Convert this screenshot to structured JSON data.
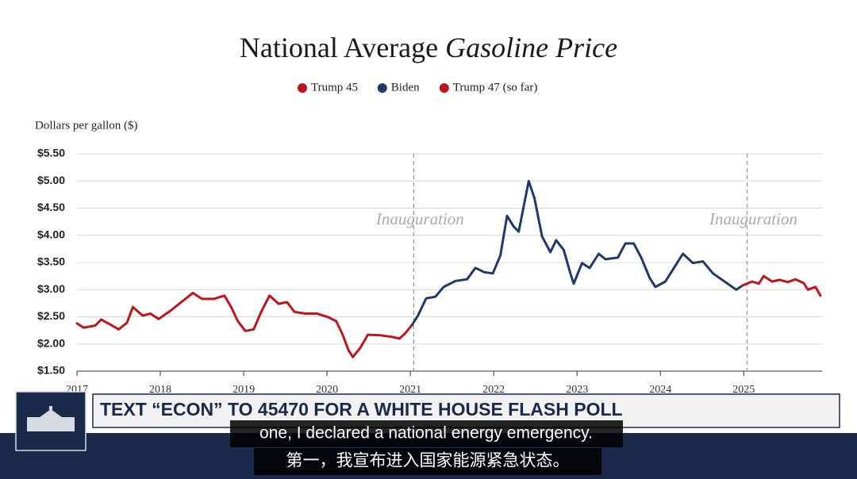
{
  "chart_data": {
    "type": "line",
    "title_parts": [
      "National Average",
      "Gasoline Price"
    ],
    "y_axis_label": "Dollars per gallon ($)",
    "xlim": [
      2017,
      2025.94
    ],
    "xticks": [
      2017,
      2018,
      2019,
      2020,
      2021,
      2022,
      2023,
      2024,
      2025
    ],
    "ylim": [
      1.5,
      5.5
    ],
    "yticks": [
      {
        "value": 1.5,
        "label": "$1.50"
      },
      {
        "value": 2,
        "label": "$2.00"
      },
      {
        "value": 2.5,
        "label": "$2.50"
      },
      {
        "value": 3,
        "label": "$3.00"
      },
      {
        "value": 3.5,
        "label": "$3.50"
      },
      {
        "value": 4,
        "label": "$4.00"
      },
      {
        "value": 4.5,
        "label": "$4.50"
      },
      {
        "value": 5,
        "label": "$5.00"
      },
      {
        "value": 5.5,
        "label": "$5.50"
      }
    ],
    "grid": true,
    "legend": "top",
    "annotations": [
      {
        "text": "Inauguration",
        "x": 2021.04
      },
      {
        "text": "Inauguration",
        "x": 2025.04
      }
    ],
    "series": [
      {
        "name": "Trump 45",
        "color": "#c0141d",
        "x": [
          2017.0,
          2017.08,
          2017.22,
          2017.29,
          2017.41,
          2017.5,
          2017.6,
          2017.67,
          2017.79,
          2017.88,
          2017.98,
          2018.12,
          2018.26,
          2018.39,
          2018.5,
          2018.64,
          2018.77,
          2018.85,
          2018.93,
          2019.02,
          2019.12,
          2019.21,
          2019.31,
          2019.42,
          2019.52,
          2019.61,
          2019.74,
          2019.88,
          2020.02,
          2020.11,
          2020.18,
          2020.26,
          2020.31,
          2020.4,
          2020.49,
          2020.64,
          2020.78,
          2020.87,
          2020.94,
          2021.02
        ],
        "values": [
          2.38,
          2.3,
          2.34,
          2.45,
          2.35,
          2.27,
          2.39,
          2.68,
          2.52,
          2.56,
          2.46,
          2.61,
          2.78,
          2.94,
          2.83,
          2.83,
          2.89,
          2.68,
          2.42,
          2.24,
          2.27,
          2.59,
          2.89,
          2.74,
          2.77,
          2.59,
          2.56,
          2.56,
          2.49,
          2.42,
          2.2,
          1.88,
          1.76,
          1.93,
          2.17,
          2.16,
          2.13,
          2.1,
          2.2,
          2.35
        ]
      },
      {
        "name": "Biden",
        "color": "#1f3a68",
        "x": [
          2021.02,
          2021.09,
          2021.19,
          2021.3,
          2021.4,
          2021.54,
          2021.68,
          2021.78,
          2021.89,
          2021.99,
          2022.08,
          2022.16,
          2022.24,
          2022.3,
          2022.37,
          2022.42,
          2022.49,
          2022.58,
          2022.68,
          2022.75,
          2022.84,
          2022.92,
          2022.96,
          2023.06,
          2023.15,
          2023.26,
          2023.34,
          2023.49,
          2023.58,
          2023.68,
          2023.77,
          2023.87,
          2023.94,
          2024.06,
          2024.15,
          2024.27,
          2024.39,
          2024.51,
          2024.63,
          2024.77,
          2024.91,
          2024.99
        ],
        "values": [
          2.35,
          2.52,
          2.84,
          2.87,
          3.05,
          3.16,
          3.19,
          3.4,
          3.32,
          3.3,
          3.63,
          4.36,
          4.16,
          4.07,
          4.61,
          5.0,
          4.68,
          3.98,
          3.69,
          3.91,
          3.73,
          3.3,
          3.11,
          3.49,
          3.4,
          3.66,
          3.56,
          3.59,
          3.85,
          3.85,
          3.59,
          3.22,
          3.05,
          3.15,
          3.37,
          3.66,
          3.49,
          3.52,
          3.3,
          3.15,
          3.0,
          3.08
        ]
      },
      {
        "name": "Trump 47 (so far)",
        "color": "#c0141d",
        "x": [
          2024.99,
          2025.1,
          2025.18,
          2025.24,
          2025.34,
          2025.43,
          2025.53,
          2025.62,
          2025.72,
          2025.77,
          2025.86,
          2025.92
        ],
        "values": [
          3.08,
          3.15,
          3.11,
          3.25,
          3.15,
          3.18,
          3.14,
          3.19,
          3.12,
          3.0,
          3.05,
          2.89
        ]
      }
    ]
  },
  "overlay": {
    "banner": "TEXT “ECON” TO 45470 FOR A WHITE HOUSE FLASH POLL",
    "captions": [
      "one, I declared a national energy emergency.",
      "第一，我宣布进入国家能源紧急状态。"
    ]
  }
}
